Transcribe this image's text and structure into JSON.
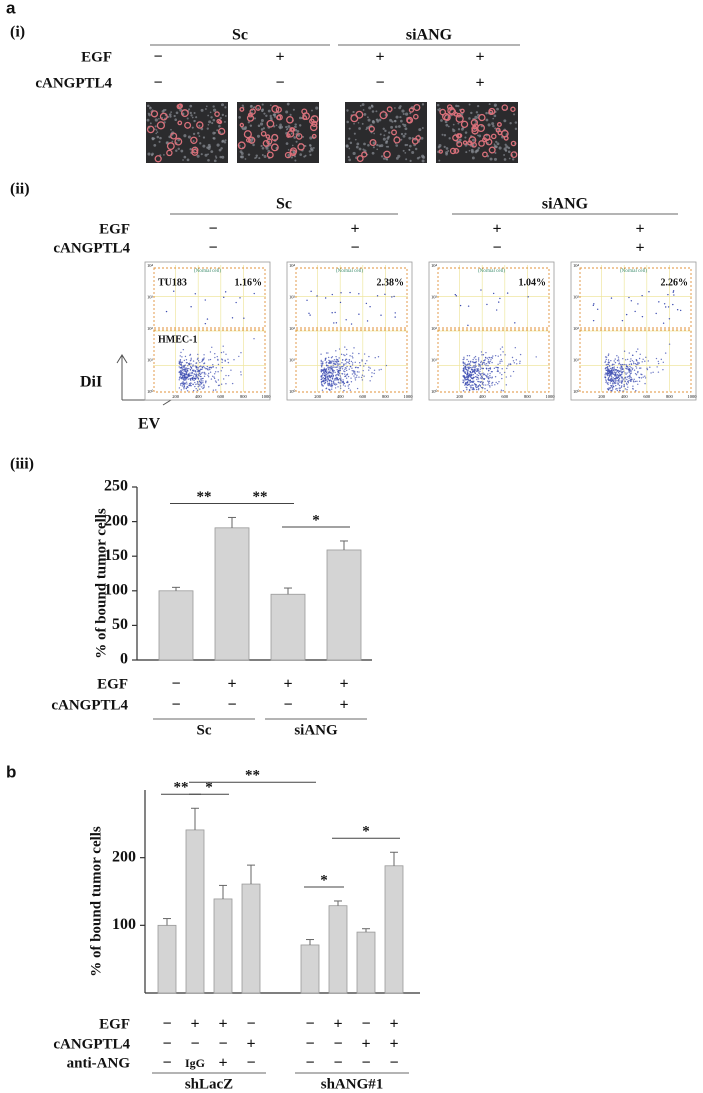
{
  "figure_labels": {
    "a": "a",
    "b": "b"
  },
  "panel_a": {
    "i": {
      "label": "(i)",
      "groups": [
        {
          "label": "Sc"
        },
        {
          "label": "siANG"
        }
      ],
      "rows": [
        {
          "label": "EGF",
          "marks": [
            "−",
            "+",
            "+",
            "+"
          ]
        },
        {
          "label": "cANGPTL4",
          "marks": [
            "−",
            "−",
            "−",
            "+"
          ]
        }
      ]
    },
    "ii": {
      "label": "(ii)",
      "groups": [
        {
          "label": "Sc"
        },
        {
          "label": "siANG"
        }
      ],
      "rows": [
        {
          "label": "EGF",
          "marks": [
            "−",
            "+",
            "+",
            "+"
          ]
        },
        {
          "label": "cANGPTL4",
          "marks": [
            "−",
            "−",
            "−",
            "+"
          ]
        }
      ],
      "gate_label": "(Normal cell)",
      "plots": [
        {
          "percent": "1.16%",
          "upper_label": "TU183",
          "lower_label": "HMEC-1"
        },
        {
          "percent": "2.38%"
        },
        {
          "percent": "1.04%"
        },
        {
          "percent": "2.26%"
        }
      ],
      "xticks": [
        "200",
        "400",
        "600",
        "800",
        "1000"
      ],
      "yticks": [
        "10⁴",
        "10³",
        "10²",
        "10¹",
        "10⁰"
      ],
      "y_axis_label": "DiI",
      "x_axis_label": "EV"
    },
    "iii": {
      "label": "(iii)"
    }
  },
  "chart_data": [
    {
      "type": "bar",
      "y_label": "% of bound tumor cells",
      "ylim": [
        0,
        250
      ],
      "yticks": [
        0,
        50,
        100,
        150,
        200,
        250
      ],
      "color": "#d4d4d4",
      "values": [
        100,
        191,
        95,
        159
      ],
      "errors": [
        5,
        15,
        9,
        13
      ],
      "rows": [
        {
          "label": "EGF",
          "marks": [
            "−",
            "+",
            "+",
            "+"
          ]
        },
        {
          "label": "cANGPTL4",
          "marks": [
            "−",
            "−",
            "−",
            "+"
          ]
        }
      ],
      "groups": [
        {
          "label": "Sc",
          "span": [
            0,
            1
          ]
        },
        {
          "label": "siANG",
          "span": [
            2,
            3
          ]
        }
      ],
      "brackets": [
        {
          "label": "**",
          "between": [
            0,
            1
          ]
        },
        {
          "label": "**",
          "between": [
            1,
            2
          ]
        },
        {
          "label": "*",
          "between": [
            2,
            3
          ]
        }
      ]
    },
    {
      "type": "bar",
      "y_label": "% of bound tumor cells",
      "ylim": [
        0,
        300
      ],
      "yticks": [
        100,
        200
      ],
      "color": "#d4d4d4",
      "values": [
        100,
        241,
        139,
        161,
        71,
        129,
        90,
        188
      ],
      "errors": [
        10,
        32,
        20,
        28,
        8,
        7,
        5,
        20
      ],
      "rows": [
        {
          "label": "EGF",
          "marks": [
            "−",
            "+",
            "+",
            "−",
            "−",
            "+",
            "−",
            "+"
          ]
        },
        {
          "label": "cANGPTL4",
          "marks": [
            "−",
            "−",
            "−",
            "+",
            "−",
            "−",
            "+",
            "+"
          ]
        },
        {
          "label": "anti-ANG",
          "marks": [
            "−",
            "IgG",
            "+",
            "−",
            "−",
            "−",
            "−",
            "−"
          ]
        }
      ],
      "groups": [
        {
          "label": "shLacZ",
          "span": [
            0,
            3
          ]
        },
        {
          "label": "shANG#1",
          "span": [
            4,
            7
          ]
        }
      ],
      "brackets": [
        {
          "label": "**",
          "between": [
            0,
            1
          ]
        },
        {
          "label": "*",
          "between": [
            1,
            2
          ]
        },
        {
          "label": "**",
          "between": [
            1,
            4
          ]
        },
        {
          "label": "*",
          "between": [
            4,
            5
          ]
        },
        {
          "label": "*",
          "between": [
            5,
            7
          ]
        }
      ]
    }
  ]
}
